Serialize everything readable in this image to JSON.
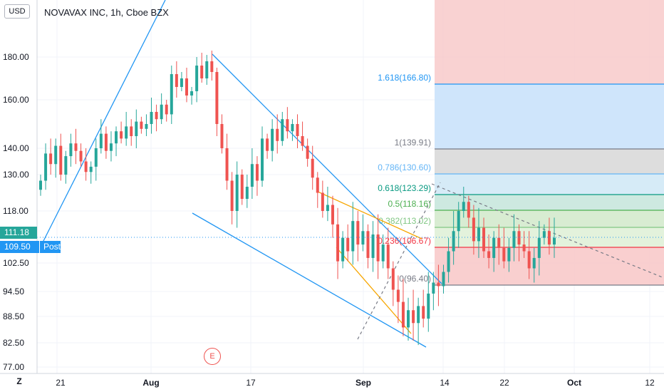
{
  "header": {
    "currency": "USD",
    "title": "NOVAVAX INC, 1h, Cboe BZX"
  },
  "price_tags": {
    "last": "111.18",
    "post_value": "109.50",
    "post_label": "Post"
  },
  "buttons": {
    "timezone": "Z"
  },
  "markers": {
    "earnings": "E"
  },
  "colors": {
    "up": "#26a69a",
    "down": "#ef5350",
    "channel": "#2196f3",
    "orange": "#f7a600",
    "fib_bg_red": "#f8c7c7"
  },
  "chart_data": {
    "type": "candlestick",
    "title": "NOVAVAX INC, 1h, Cboe BZX",
    "y_ticks": [
      "180.00",
      "160.00",
      "140.00",
      "130.00",
      "118.00",
      "102.50",
      "94.50",
      "88.50",
      "82.50",
      "77.00"
    ],
    "x_ticks": [
      {
        "label": "21",
        "bold": false
      },
      {
        "label": "Aug",
        "bold": true
      },
      {
        "label": "17",
        "bold": false
      },
      {
        "label": "Sep",
        "bold": true
      },
      {
        "label": "14",
        "bold": false
      },
      {
        "label": "22",
        "bold": false
      },
      {
        "label": "Oct",
        "bold": true
      },
      {
        "label": "12",
        "bold": false
      }
    ],
    "fib_levels": [
      {
        "label": "1.618(166.80)",
        "value": 166.8,
        "color": "#2196f3"
      },
      {
        "label": "1(139.91)",
        "value": 139.91,
        "color": "#787b86"
      },
      {
        "label": "0.786(130.60)",
        "value": 130.6,
        "color": "#64b5f6"
      },
      {
        "label": "0.618(123.29)",
        "value": 123.29,
        "color": "#089981"
      },
      {
        "label": "0.5(118.16)",
        "value": 118.16,
        "color": "#4caf50"
      },
      {
        "label": "0.382(113.02)",
        "value": 113.02,
        "color": "#81c784"
      },
      {
        "label": "0.236(106.67)",
        "value": 106.67,
        "color": "#f23645"
      },
      {
        "label": "0(96.40)",
        "value": 96.4,
        "color": "#787b86"
      }
    ],
    "close_series": [
      128,
      138,
      134,
      141,
      130,
      137,
      142,
      139,
      135,
      131,
      133,
      140,
      146,
      139,
      142,
      147,
      144,
      149,
      145,
      151,
      148,
      150,
      155,
      152,
      158,
      154,
      172,
      166,
      170,
      162,
      164,
      176,
      170,
      178,
      173,
      150,
      140,
      128,
      118,
      130,
      122,
      126,
      134,
      128,
      144,
      139,
      148,
      143,
      152,
      147,
      150,
      145,
      141,
      136,
      129,
      124,
      118,
      120,
      114,
      103,
      110,
      106,
      115,
      108,
      112,
      104,
      111,
      103,
      108,
      101,
      95,
      92,
      86,
      90,
      87,
      91,
      88,
      94,
      97,
      96,
      100,
      106,
      112,
      118,
      121,
      116,
      109,
      113,
      106,
      104,
      110,
      107,
      103,
      107,
      112,
      108,
      106,
      101,
      104,
      110,
      112,
      108,
      110
    ],
    "last_price": 111.18,
    "post_price": 109.5
  }
}
